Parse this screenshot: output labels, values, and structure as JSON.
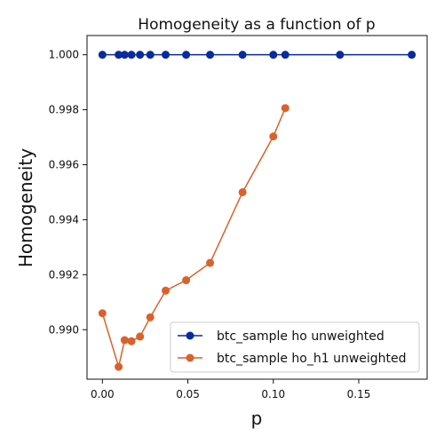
{
  "chart_data": {
    "type": "line",
    "title": "Homogeneity as a function of p",
    "xlabel": "p",
    "ylabel": "Homogeneity",
    "xlim": [
      -0.009,
      0.19
    ],
    "ylim": [
      0.9882,
      1.0007
    ],
    "xticks": [
      {
        "value": 0.0,
        "label": "0.00"
      },
      {
        "value": 0.05,
        "label": "0.05"
      },
      {
        "value": 0.1,
        "label": "0.10"
      },
      {
        "value": 0.15,
        "label": "0.15"
      }
    ],
    "yticks": [
      {
        "value": 0.99,
        "label": "0.990"
      },
      {
        "value": 0.992,
        "label": "0.992"
      },
      {
        "value": 0.994,
        "label": "0.994"
      },
      {
        "value": 0.996,
        "label": "0.996"
      },
      {
        "value": 0.998,
        "label": "0.998"
      },
      {
        "value": 1.0,
        "label": "1.000"
      }
    ],
    "grid": false,
    "legend_position": "bottom-right",
    "series": [
      {
        "name": "btc_sample ho unweighted",
        "color": "#0a2a9e",
        "points": [
          [
            0.0,
            1.0
          ],
          [
            0.0095,
            1.0
          ],
          [
            0.013,
            1.0
          ],
          [
            0.017,
            1.0
          ],
          [
            0.022,
            1.0
          ],
          [
            0.028,
            1.0
          ],
          [
            0.037,
            1.0
          ],
          [
            0.049,
            1.0
          ],
          [
            0.063,
            1.0
          ],
          [
            0.082,
            1.0
          ],
          [
            0.1,
            1.0
          ],
          [
            0.107,
            1.0
          ],
          [
            0.139,
            1.0
          ],
          [
            0.181,
            1.0
          ]
        ]
      },
      {
        "name": "btc_sample ho_h1 unweighted",
        "color": "#d9622b",
        "points": [
          [
            0.0,
            0.9906
          ],
          [
            0.0095,
            0.98865
          ],
          [
            0.013,
            0.98962
          ],
          [
            0.017,
            0.98958
          ],
          [
            0.022,
            0.98975
          ],
          [
            0.028,
            0.99045
          ],
          [
            0.037,
            0.99142
          ],
          [
            0.049,
            0.9918
          ],
          [
            0.063,
            0.99243
          ],
          [
            0.082,
            0.995
          ],
          [
            0.1,
            0.99703
          ],
          [
            0.107,
            0.99806
          ]
        ]
      }
    ]
  }
}
